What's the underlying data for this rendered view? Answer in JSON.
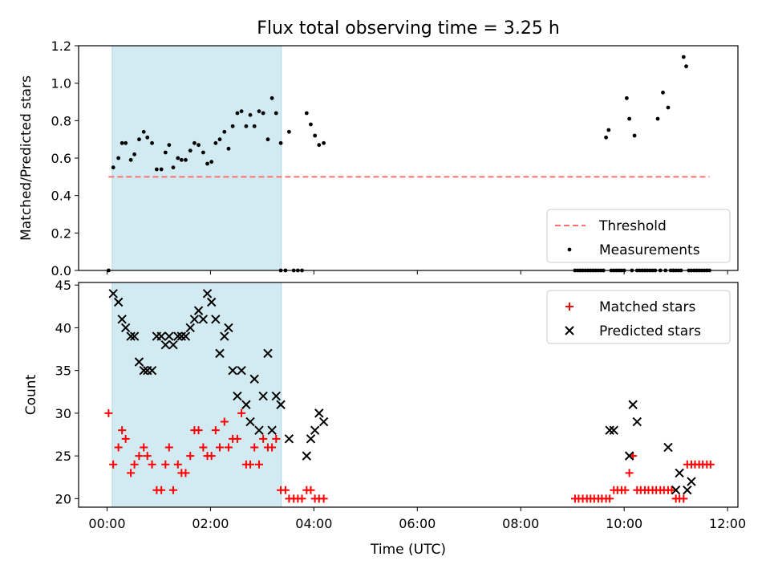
{
  "title": "Flux total observing time = 3.25 h",
  "xlabel": "Time (UTC)",
  "xticks": [
    {
      "label": "00:00",
      "hours": 0
    },
    {
      "label": "02:00",
      "hours": 2
    },
    {
      "label": "04:00",
      "hours": 4
    },
    {
      "label": "06:00",
      "hours": 6
    },
    {
      "label": "08:00",
      "hours": 8
    },
    {
      "label": "10:00",
      "hours": 10
    },
    {
      "label": "12:00",
      "hours": 12
    }
  ],
  "xlim": [
    -0.55,
    12.2
  ],
  "colors": {
    "threshold": "#ff7070",
    "measurements": "#000000",
    "matched": "#ff0000",
    "predicted": "#000000",
    "span": "#add8e6"
  },
  "chart_data": [
    {
      "type": "scatter",
      "ylabel": "Matched/Predicted stars",
      "ylim": [
        0,
        1.2
      ],
      "yticks": [
        "0.0",
        "0.2",
        "0.4",
        "0.6",
        "0.8",
        "1.0",
        "1.2"
      ],
      "ytick_values": [
        0,
        0.2,
        0.4,
        0.6,
        0.8,
        1.0,
        1.2
      ],
      "highlight_span": [
        0.1,
        3.37
      ],
      "legend": {
        "location": "lower right",
        "entries": [
          "Threshold",
          "Measurements"
        ]
      },
      "series": [
        {
          "name": "Threshold",
          "kind": "dashed-line",
          "x": [
            0.03,
            11.65
          ],
          "y": [
            0.5,
            0.5
          ]
        },
        {
          "name": "Measurements",
          "kind": "points",
          "x": [
            0.03,
            0.12,
            0.22,
            0.29,
            0.36,
            0.46,
            0.53,
            0.62,
            0.71,
            0.78,
            0.87,
            0.96,
            1.05,
            1.13,
            1.2,
            1.28,
            1.37,
            1.44,
            1.52,
            1.61,
            1.69,
            1.77,
            1.86,
            1.94,
            2.02,
            2.1,
            2.18,
            2.27,
            2.35,
            2.43,
            2.52,
            2.6,
            2.69,
            2.77,
            2.85,
            2.94,
            3.02,
            3.11,
            3.19,
            3.27,
            3.36,
            3.36,
            3.45,
            3.52,
            3.61,
            3.69,
            3.77,
            3.86,
            3.94,
            4.02,
            4.1,
            4.19,
            9.05,
            9.1,
            9.15,
            9.2,
            9.25,
            9.3,
            9.35,
            9.4,
            9.45,
            9.5,
            9.55,
            9.6,
            9.65,
            9.7,
            9.75,
            9.8,
            9.85,
            9.9,
            9.95,
            10.0,
            10.05,
            10.1,
            10.15,
            10.2,
            10.25,
            10.3,
            10.35,
            10.4,
            10.45,
            10.5,
            10.55,
            10.6,
            10.65,
            10.7,
            10.75,
            10.8,
            10.85,
            10.9,
            10.95,
            11.0,
            11.05,
            11.1,
            11.15,
            11.2,
            11.25,
            11.3,
            11.35,
            11.4,
            11.45,
            11.5,
            11.55,
            11.6,
            11.65
          ],
          "y": [
            0.0,
            0.55,
            0.6,
            0.68,
            0.68,
            0.59,
            0.62,
            0.7,
            0.74,
            0.71,
            0.68,
            0.54,
            0.54,
            0.63,
            0.67,
            0.55,
            0.6,
            0.59,
            0.59,
            0.64,
            0.68,
            0.67,
            0.63,
            0.57,
            0.58,
            0.68,
            0.7,
            0.74,
            0.65,
            0.77,
            0.84,
            0.85,
            0.77,
            0.83,
            0.77,
            0.85,
            0.84,
            0.7,
            0.92,
            0.84,
            0.0,
            0.68,
            0.0,
            0.74,
            0.0,
            0.0,
            0.0,
            0.84,
            0.78,
            0.72,
            0.67,
            0.68,
            0.0,
            0.0,
            0.0,
            0.0,
            0.0,
            0.0,
            0.0,
            0.0,
            0.0,
            0.0,
            0.0,
            0.0,
            0.71,
            0.75,
            0.0,
            0.0,
            0.0,
            0.0,
            0.0,
            0.0,
            0.92,
            0.81,
            0.0,
            0.72,
            0.0,
            0.0,
            0.0,
            0.0,
            0.0,
            0.0,
            0.0,
            0.0,
            0.81,
            0.0,
            0.95,
            0.0,
            0.87,
            0.0,
            0.0,
            0.0,
            0.0,
            0.0,
            1.14,
            1.09,
            0.0,
            0.0,
            0.0,
            0.0,
            0.0,
            0.0,
            0.0,
            0.0,
            0.0
          ]
        }
      ]
    },
    {
      "type": "scatter",
      "ylabel": "Count",
      "ylim": [
        19,
        45.3
      ],
      "yticks": [
        "20",
        "25",
        "30",
        "35",
        "40",
        "45"
      ],
      "ytick_values": [
        20,
        25,
        30,
        35,
        40,
        45
      ],
      "highlight_span": [
        0.1,
        3.37
      ],
      "legend": {
        "location": "upper right",
        "entries": [
          "Matched stars",
          "Predicted stars"
        ]
      },
      "series": [
        {
          "name": "Matched stars",
          "kind": "plus",
          "x": [
            0.03,
            0.12,
            0.22,
            0.29,
            0.36,
            0.46,
            0.53,
            0.62,
            0.71,
            0.78,
            0.87,
            0.96,
            1.05,
            1.13,
            1.2,
            1.28,
            1.37,
            1.44,
            1.52,
            1.61,
            1.69,
            1.77,
            1.86,
            1.94,
            2.02,
            2.1,
            2.18,
            2.27,
            2.35,
            2.43,
            2.52,
            2.6,
            2.69,
            2.77,
            2.85,
            2.94,
            3.02,
            3.11,
            3.19,
            3.27,
            3.36,
            3.45,
            3.52,
            3.61,
            3.69,
            3.77,
            3.86,
            3.94,
            4.02,
            4.1,
            4.19,
            9.05,
            9.12,
            9.2,
            9.28,
            9.35,
            9.42,
            9.5,
            9.57,
            9.65,
            9.72,
            9.8,
            9.87,
            9.95,
            10.02,
            10.1,
            10.17,
            10.25,
            10.32,
            10.4,
            10.47,
            10.55,
            10.62,
            10.7,
            10.77,
            10.85,
            10.92,
            11.0,
            11.07,
            11.15,
            11.22,
            11.3,
            11.37,
            11.45,
            11.52,
            11.6,
            11.67
          ],
          "y": [
            30,
            24,
            26,
            28,
            27,
            23,
            24,
            25,
            26,
            25,
            24,
            21,
            21,
            24,
            26,
            21,
            24,
            23,
            23,
            25,
            28,
            28,
            26,
            25,
            25,
            28,
            26,
            29,
            26,
            27,
            27,
            30,
            24,
            24,
            26,
            24,
            27,
            26,
            26,
            27,
            21,
            21,
            20,
            20,
            20,
            20,
            21,
            21,
            20,
            20,
            20,
            20,
            20,
            20,
            20,
            20,
            20,
            20,
            20,
            20,
            20,
            21,
            21,
            21,
            21,
            23,
            25,
            21,
            21,
            21,
            21,
            21,
            21,
            21,
            21,
            21,
            21,
            20,
            20,
            20,
            24,
            24,
            24,
            24,
            24,
            24,
            24
          ]
        },
        {
          "name": "Predicted stars",
          "kind": "cross",
          "x": [
            0.12,
            0.22,
            0.29,
            0.36,
            0.46,
            0.53,
            0.62,
            0.71,
            0.78,
            0.87,
            0.96,
            1.05,
            1.13,
            1.2,
            1.28,
            1.37,
            1.44,
            1.52,
            1.61,
            1.69,
            1.77,
            1.86,
            1.94,
            2.02,
            2.1,
            2.18,
            2.27,
            2.35,
            2.43,
            2.52,
            2.6,
            2.69,
            2.77,
            2.85,
            2.94,
            3.02,
            3.11,
            3.19,
            3.27,
            3.36,
            3.52,
            3.86,
            3.94,
            4.02,
            4.1,
            4.19,
            9.72,
            9.8,
            10.1,
            10.17,
            10.25,
            10.85,
            11.0,
            11.07,
            11.22,
            11.3
          ],
          "y": [
            44,
            43,
            41,
            40,
            39,
            39,
            36,
            35,
            35,
            35,
            39,
            39,
            38,
            39,
            38,
            39,
            39,
            39,
            40,
            41,
            42,
            41,
            44,
            43,
            41,
            37,
            39,
            40,
            35,
            32,
            35,
            31,
            29,
            34,
            28,
            32,
            37,
            28,
            32,
            31,
            27,
            25,
            27,
            28,
            30,
            29,
            28,
            28,
            25,
            31,
            29,
            26,
            21,
            23,
            21,
            22
          ]
        }
      ]
    }
  ]
}
